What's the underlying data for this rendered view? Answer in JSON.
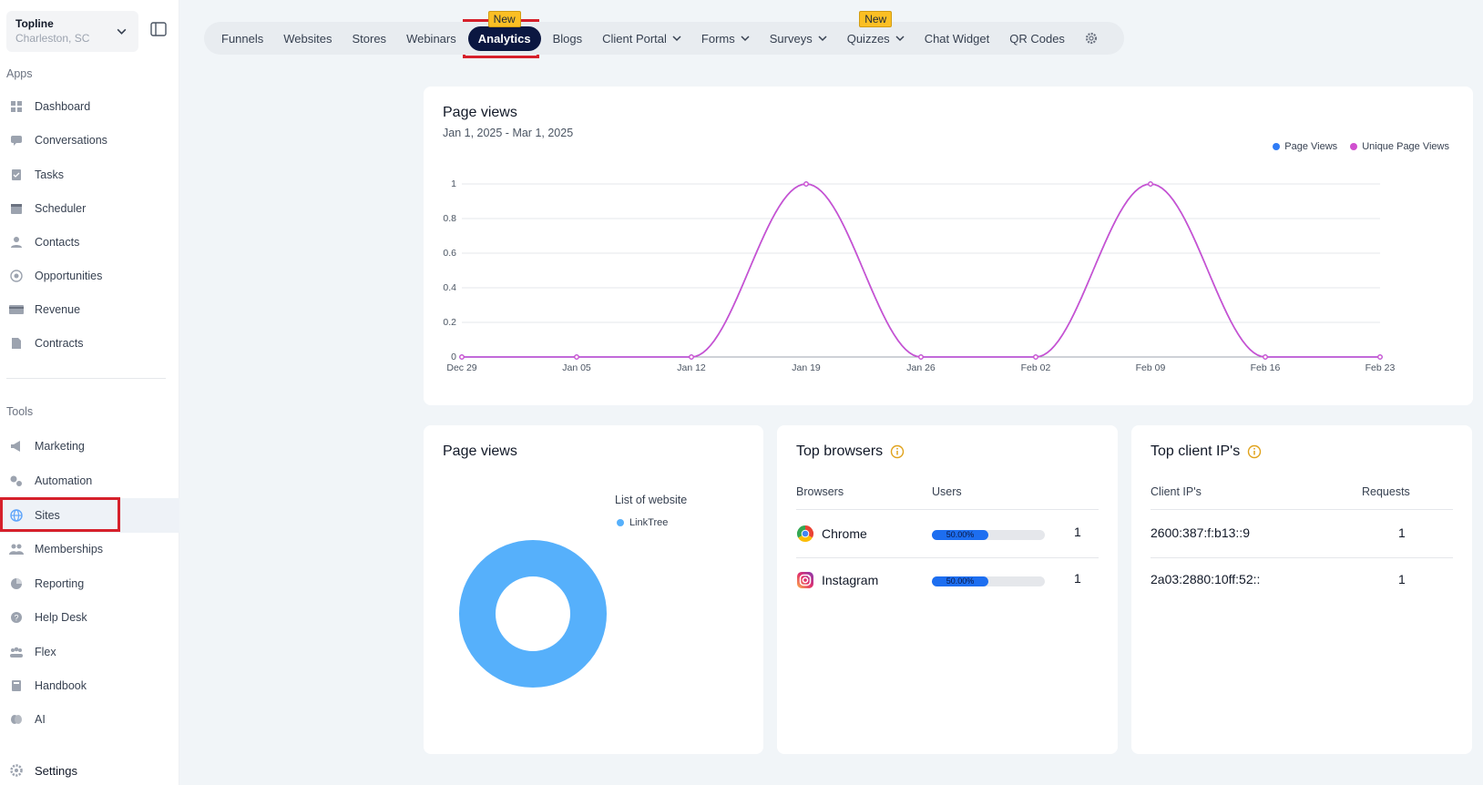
{
  "location": {
    "name": "Topline",
    "city": "Charleston, SC"
  },
  "sidebar": {
    "apps_label": "Apps",
    "apps": [
      {
        "label": "Dashboard",
        "icon": "dashboard-icon"
      },
      {
        "label": "Conversations",
        "icon": "chat-icon"
      },
      {
        "label": "Tasks",
        "icon": "tasks-icon"
      },
      {
        "label": "Scheduler",
        "icon": "calendar-icon"
      },
      {
        "label": "Contacts",
        "icon": "person-icon"
      },
      {
        "label": "Opportunities",
        "icon": "target-icon"
      },
      {
        "label": "Revenue",
        "icon": "card-icon"
      },
      {
        "label": "Contracts",
        "icon": "document-icon"
      }
    ],
    "tools_label": "Tools",
    "tools": [
      {
        "label": "Marketing",
        "icon": "megaphone-icon"
      },
      {
        "label": "Automation",
        "icon": "gears-icon"
      },
      {
        "label": "Sites",
        "icon": "globe-icon"
      },
      {
        "label": "Memberships",
        "icon": "group-icon"
      },
      {
        "label": "Reporting",
        "icon": "pie-icon"
      },
      {
        "label": "Help Desk",
        "icon": "help-icon"
      },
      {
        "label": "Flex",
        "icon": "users-icon"
      },
      {
        "label": "Handbook",
        "icon": "book-icon"
      },
      {
        "label": "AI",
        "icon": "brain-icon"
      }
    ],
    "settings_label": "Settings"
  },
  "topnav": {
    "tabs": [
      {
        "label": "Funnels"
      },
      {
        "label": "Websites"
      },
      {
        "label": "Stores"
      },
      {
        "label": "Webinars"
      },
      {
        "label": "Analytics",
        "active": true,
        "badge": "New"
      },
      {
        "label": "Blogs"
      },
      {
        "label": "Client Portal",
        "dropdown": true
      },
      {
        "label": "Forms",
        "dropdown": true
      },
      {
        "label": "Surveys",
        "dropdown": true
      },
      {
        "label": "Quizzes",
        "dropdown": true,
        "badge": "New"
      },
      {
        "label": "Chat Widget"
      },
      {
        "label": "QR Codes"
      }
    ]
  },
  "pageviews_card": {
    "title": "Page views",
    "date_range": "Jan 1, 2025 - Mar 1, 2025",
    "legend": [
      "Page Views",
      "Unique Page Views"
    ]
  },
  "chart_data": {
    "type": "line",
    "title": "Page views",
    "x": [
      "Dec 29",
      "Jan 05",
      "Jan 12",
      "Jan 19",
      "Jan 26",
      "Feb 02",
      "Feb 09",
      "Feb 16",
      "Feb 23"
    ],
    "yticks": [
      "0",
      "0.2",
      "0.4",
      "0.6",
      "0.8",
      "1"
    ],
    "ylim": [
      0,
      1
    ],
    "series": [
      {
        "name": "Page Views",
        "color": "#2f7cf6",
        "values": [
          0,
          0,
          0,
          1,
          0,
          0,
          1,
          0,
          0
        ]
      },
      {
        "name": "Unique Page Views",
        "color": "#d04fcf",
        "values": [
          0,
          0,
          0,
          1,
          0,
          0,
          1,
          0,
          0
        ]
      }
    ],
    "legend_position": "top-right",
    "grid": true
  },
  "donut_card": {
    "title": "Page views",
    "legend_title": "List of website",
    "items": [
      {
        "label": "LinkTree",
        "value": 1,
        "color": "#56b0fb"
      }
    ]
  },
  "browsers_card": {
    "title": "Top browsers",
    "col_browser": "Browsers",
    "col_users": "Users",
    "rows": [
      {
        "name": "Chrome",
        "icon": "chrome-icon",
        "percent_label": "50.00%",
        "percent": 50,
        "count": "1"
      },
      {
        "name": "Instagram",
        "icon": "instagram-icon",
        "percent_label": "50.00%",
        "percent": 50,
        "count": "1"
      }
    ]
  },
  "ips_card": {
    "title": "Top client IP's",
    "col_ip": "Client IP's",
    "col_requests": "Requests",
    "rows": [
      {
        "ip": "2600:387:f:b13::9",
        "requests": "1"
      },
      {
        "ip": "2a03:2880:10ff:52::",
        "requests": "1"
      }
    ]
  },
  "colors": {
    "accent_dark": "#0b1741",
    "highlight_red": "#d6202b",
    "badge": "#fbbf24"
  }
}
